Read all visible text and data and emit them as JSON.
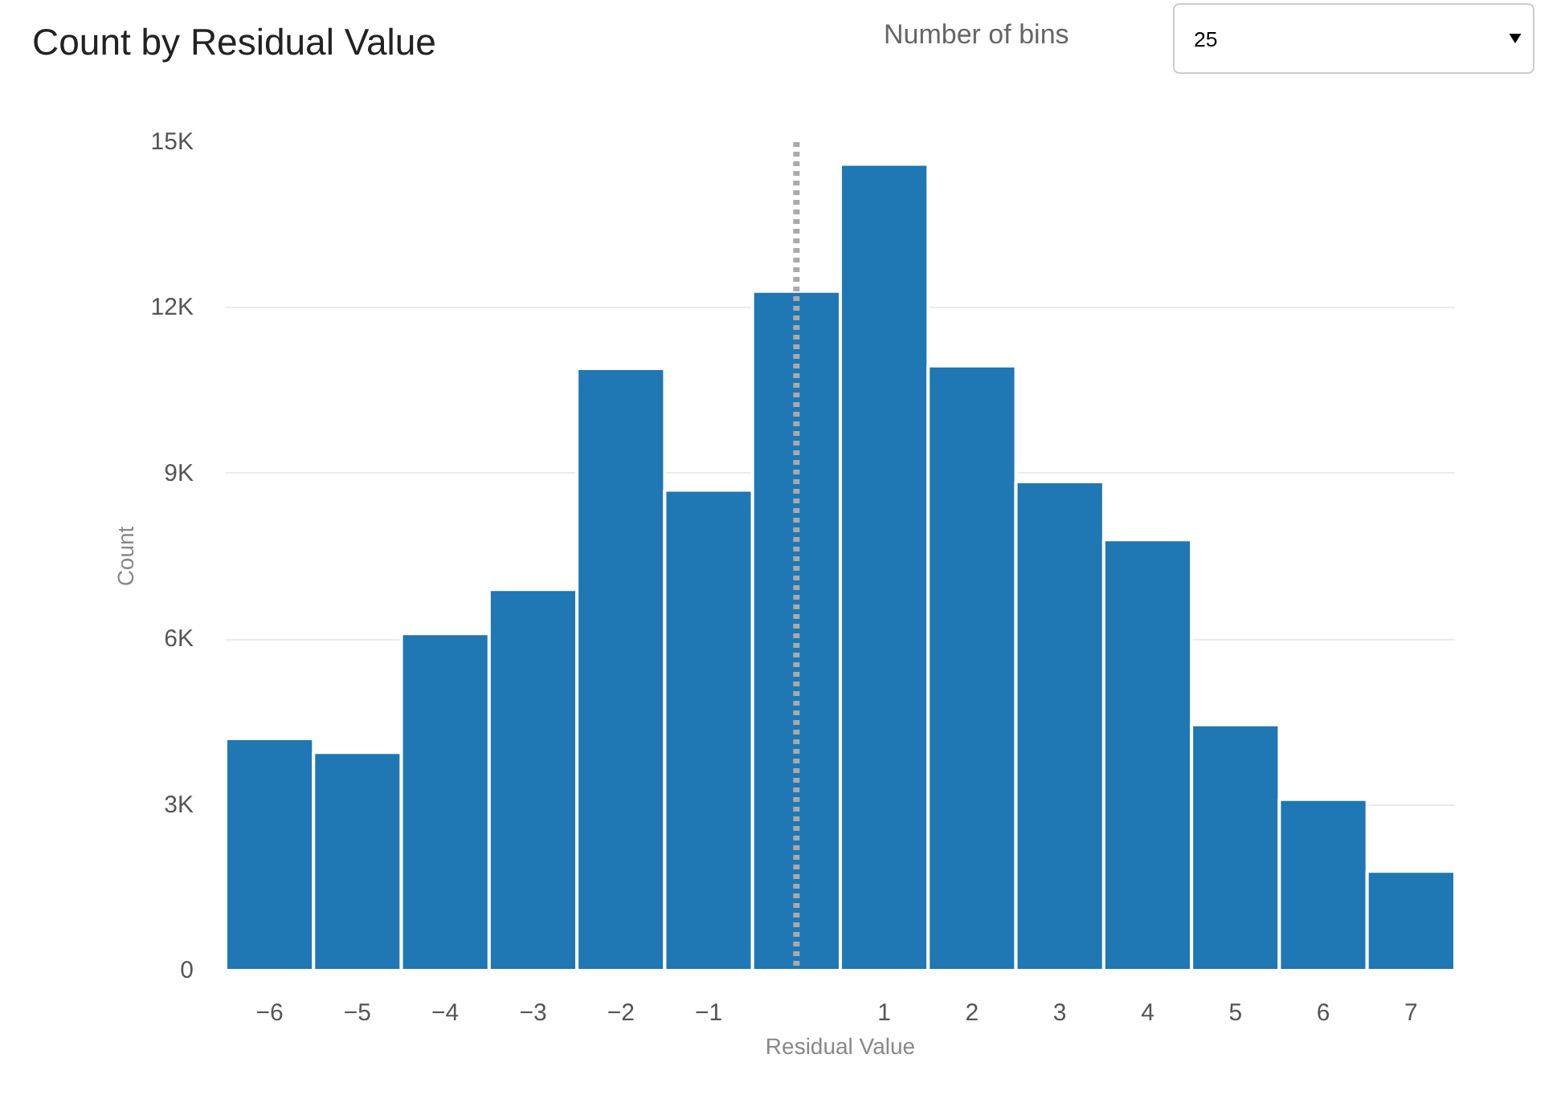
{
  "chart_data": {
    "type": "histogram",
    "title": "Count by Residual Value",
    "xlabel": "Residual Value",
    "ylabel": "Count",
    "bins": [
      -6.5,
      -5.5,
      -4.5,
      -3.5,
      -2.5,
      -1.5,
      -0.5,
      0.5,
      1.5,
      2.5,
      3.5,
      4.5,
      5.5,
      6.5,
      7.5
    ],
    "values": [
      4200,
      3950,
      6100,
      6900,
      10900,
      8700,
      12300,
      14600,
      10950,
      8850,
      7800,
      4450,
      3100,
      1800
    ],
    "color": "#1f77b4",
    "xlim": [
      -6.5,
      7.5
    ],
    "ylim": [
      0,
      15000
    ],
    "xticks": [
      -6,
      -5,
      -4,
      -3,
      -2,
      -1,
      1,
      2,
      3,
      4,
      5,
      6,
      7
    ],
    "yticks": [
      0,
      {
        "value": 3000,
        "label": "3K"
      },
      {
        "value": 6000,
        "label": "6K"
      },
      {
        "value": 9000,
        "label": "9K"
      },
      {
        "value": 12000,
        "label": "12K"
      },
      {
        "value": 15000,
        "label": "15K"
      }
    ],
    "grid": "y",
    "ref_lines": [
      {
        "axis": "x",
        "value": 0,
        "color": "#aaaaaa",
        "line_style": "dotted"
      }
    ],
    "annotations": [
      "Number of bins",
      "25"
    ]
  }
}
